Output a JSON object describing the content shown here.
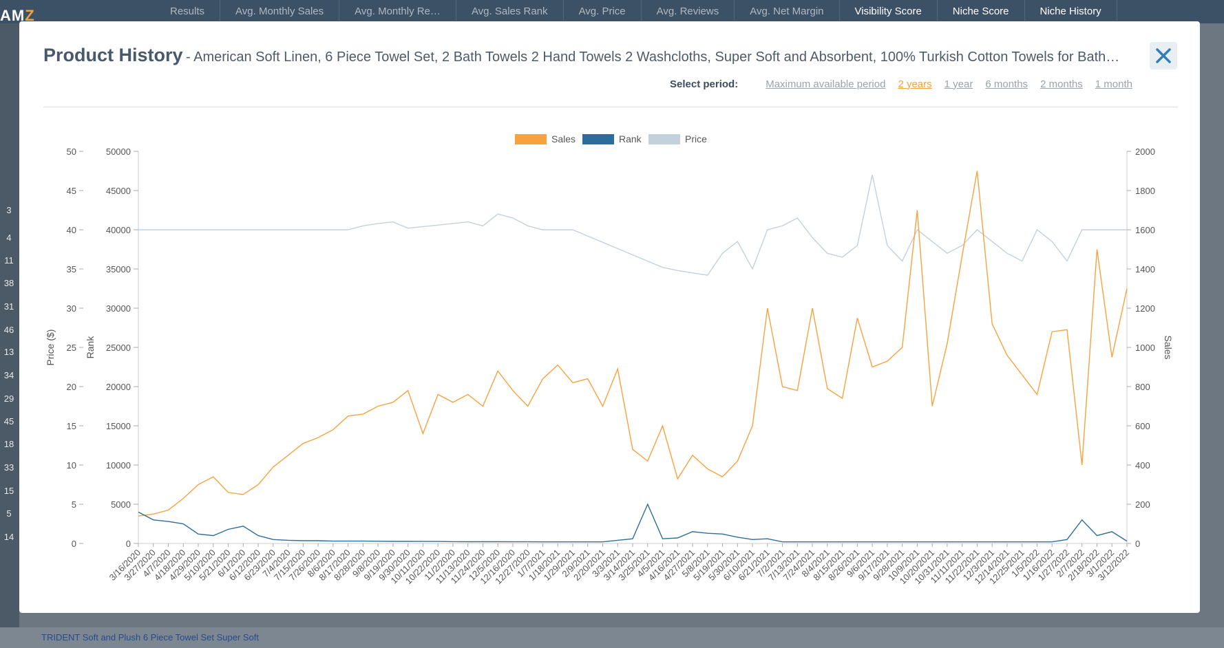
{
  "background": {
    "nav_items": [
      "Results",
      "Avg. Monthly Sales",
      "Avg. Monthly Re…",
      "Avg. Sales Rank",
      "Avg. Price",
      "Avg. Reviews",
      "Avg. Net Margin",
      "Visibility Score",
      "Niche Score",
      "Niche History"
    ],
    "bold_nav": [
      "Visibility Score",
      "Niche Score",
      "Niche History"
    ],
    "row_numbers": [
      "3",
      "4",
      "11",
      "38",
      "31",
      "46",
      "13",
      "34",
      "29",
      "45",
      "18",
      "33",
      "15",
      "5",
      "14"
    ],
    "bottom_row_text": "TRIDENT Soft and Plush 6 Piece Towel Set   Super Soft"
  },
  "modal": {
    "title": "Product History",
    "subtitle": "- American Soft Linen, 6 Piece Towel Set, 2 Bath Towels 2 Hand Towels 2 Washcloths, Super Soft and Absorbent, 100% Turkish Cotton Towels for Bath…",
    "close_label": "✕",
    "period_label": "Select period:",
    "periods": [
      "Maximum available period",
      "2 years",
      "1 year",
      "6 months",
      "2 months",
      "1 month"
    ],
    "active_period": "2 years"
  },
  "colors": {
    "sales": "#f7a23e",
    "rank": "#2c6e9b",
    "price": "#c2d1dc"
  },
  "chart_data": {
    "type": "line",
    "legend": [
      "Sales",
      "Rank",
      "Price"
    ],
    "y_price": {
      "label": "Price ($)",
      "ticks": [
        0,
        5,
        10,
        15,
        20,
        25,
        30,
        35,
        40,
        45,
        50
      ],
      "range": [
        0,
        50
      ]
    },
    "y_rank": {
      "label": "Rank",
      "ticks": [
        0,
        5000,
        10000,
        15000,
        20000,
        25000,
        30000,
        35000,
        40000,
        45000,
        50000
      ],
      "range": [
        0,
        50000
      ]
    },
    "y_sales": {
      "label": "Sales",
      "ticks": [
        0,
        200,
        400,
        600,
        800,
        1000,
        1200,
        1400,
        1600,
        1800,
        2000
      ],
      "range": [
        0,
        2000
      ]
    },
    "x_labels": [
      "3/16/2020",
      "3/27/2020",
      "4/7/2020",
      "4/18/2020",
      "4/29/2020",
      "5/10/2020",
      "5/21/2020",
      "6/1/2020",
      "6/12/2020",
      "6/23/2020",
      "7/4/2020",
      "7/15/2020",
      "7/26/2020",
      "8/6/2020",
      "8/17/2020",
      "8/28/2020",
      "9/8/2020",
      "9/19/2020",
      "9/30/2020",
      "10/11/2020",
      "10/22/2020",
      "11/2/2020",
      "11/13/2020",
      "11/24/2020",
      "12/5/2020",
      "12/16/2020",
      "12/27/2020",
      "1/7/2021",
      "1/18/2021",
      "1/29/2021",
      "2/9/2021",
      "2/20/2021",
      "3/3/2021",
      "3/14/2021",
      "3/25/2021",
      "4/5/2021",
      "4/16/2021",
      "4/27/2021",
      "5/8/2021",
      "5/19/2021",
      "5/30/2021",
      "6/10/2021",
      "6/21/2021",
      "7/2/2021",
      "7/13/2021",
      "7/24/2021",
      "8/4/2021",
      "8/15/2021",
      "8/26/2021",
      "9/6/2021",
      "9/17/2021",
      "9/28/2021",
      "10/9/2021",
      "10/20/2021",
      "10/31/2021",
      "11/11/2021",
      "11/22/2021",
      "12/3/2021",
      "12/14/2021",
      "12/25/2021",
      "1/5/2022",
      "1/16/2022",
      "1/27/2022",
      "2/7/2022",
      "2/18/2022",
      "3/1/2022",
      "3/12/2022"
    ],
    "sales": [
      140,
      150,
      170,
      230,
      300,
      340,
      260,
      250,
      300,
      390,
      450,
      510,
      540,
      580,
      650,
      660,
      700,
      720,
      780,
      560,
      760,
      720,
      760,
      700,
      880,
      780,
      700,
      840,
      910,
      820,
      840,
      700,
      890,
      480,
      420,
      600,
      330,
      450,
      380,
      340,
      420,
      600,
      1200,
      800,
      780,
      1200,
      790,
      740,
      1150,
      900,
      930,
      1000,
      1700,
      700,
      1020,
      1470,
      1900,
      1120,
      960,
      860,
      760,
      1080,
      1090,
      400,
      1500,
      950,
      1300
    ],
    "rank": [
      4000,
      3000,
      2800,
      2500,
      1200,
      1000,
      1800,
      2200,
      1000,
      500,
      400,
      350,
      350,
      300,
      300,
      300,
      280,
      260,
      260,
      250,
      250,
      230,
      220,
      220,
      220,
      210,
      210,
      200,
      200,
      200,
      200,
      200,
      400,
      600,
      5000,
      600,
      700,
      1500,
      1300,
      1200,
      800,
      500,
      600,
      200,
      200,
      200,
      200,
      200,
      200,
      200,
      200,
      200,
      200,
      200,
      200,
      200,
      200,
      200,
      200,
      200,
      200,
      200,
      500,
      3000,
      1000,
      1500,
      300
    ],
    "price": [
      40,
      40,
      40,
      40,
      40,
      40,
      40,
      40,
      40,
      40,
      40,
      40,
      40,
      40,
      40,
      40.5,
      40.8,
      41,
      40.2,
      40.4,
      40.6,
      40.8,
      41,
      40.5,
      42,
      41.5,
      40.5,
      40,
      40,
      40,
      39.2,
      38.4,
      37.6,
      36.8,
      36,
      35.2,
      34.8,
      34.5,
      34.2,
      37,
      38.5,
      35,
      40,
      40.5,
      41.5,
      39,
      37,
      36.5,
      38,
      47,
      38,
      36,
      40,
      38.5,
      37,
      38,
      40,
      38.5,
      37,
      36,
      40,
      38.5,
      36,
      40,
      40,
      40,
      40
    ]
  }
}
